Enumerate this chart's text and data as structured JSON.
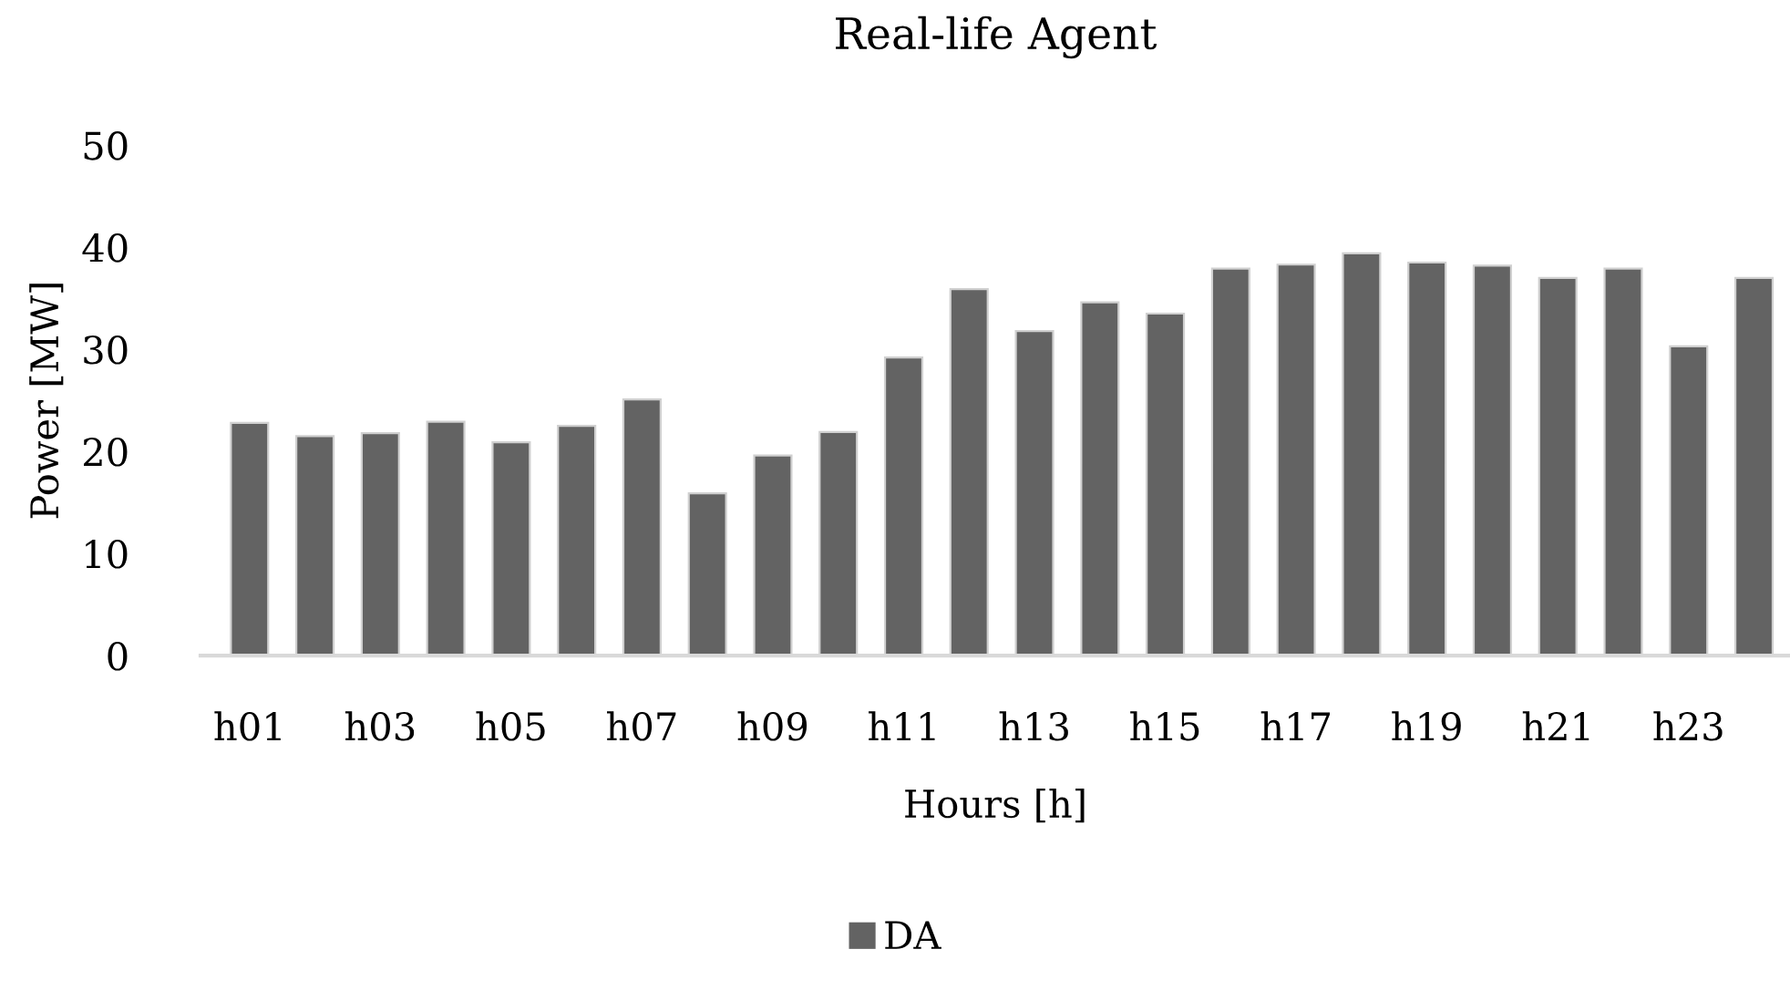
{
  "chart_data": {
    "type": "bar",
    "title": "Real-life Agent",
    "xlabel": "Hours [h]",
    "ylabel": "Power [MW]",
    "categories": [
      "h01",
      null,
      "h03",
      null,
      "h05",
      null,
      "h07",
      null,
      "h09",
      null,
      "h11",
      null,
      "h13",
      null,
      "h15",
      null,
      "h17",
      null,
      "h19",
      null,
      "h21",
      null,
      "h23",
      null
    ],
    "series": [
      {
        "name": "DA",
        "color": "#636363",
        "values": [
          22.8,
          21.5,
          21.8,
          22.9,
          20.9,
          22.5,
          25.1,
          15.9,
          19.6,
          21.9,
          29.2,
          35.9,
          31.8,
          34.6,
          33.5,
          37.9,
          38.3,
          39.4,
          38.5,
          38.2,
          37.0,
          37.9,
          30.3,
          37.0
        ]
      }
    ],
    "ylim": [
      0,
      50
    ],
    "yticks": [
      0,
      10,
      20,
      30,
      40,
      50
    ],
    "grid": false,
    "legend": "bottom"
  }
}
